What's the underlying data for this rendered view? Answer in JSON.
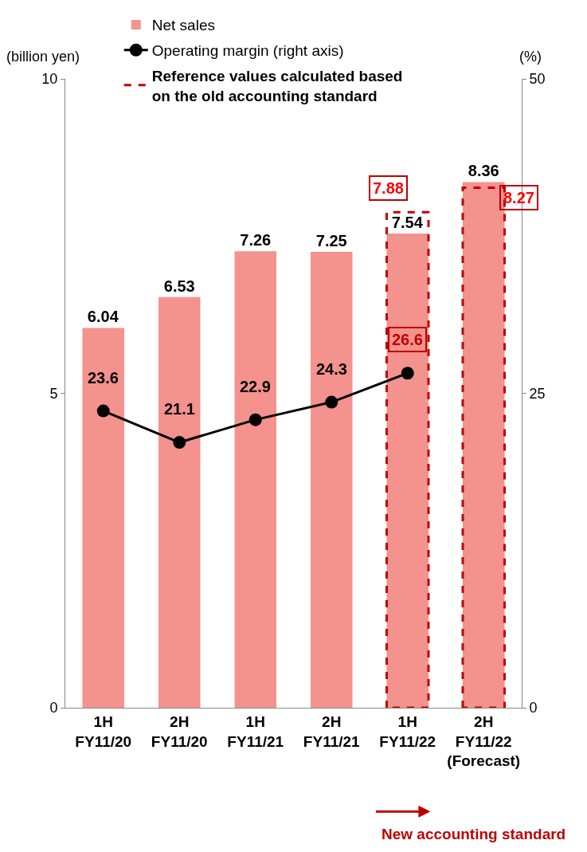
{
  "chart_data": {
    "type": "bar",
    "categories": [
      "1H\nFY11/20",
      "2H\nFY11/20",
      "1H\nFY11/21",
      "2H\nFY11/21",
      "1H\nFY11/22",
      "2H\nFY11/22\n(Forecast)"
    ],
    "series": [
      {
        "name": "Net sales",
        "color": "#f4928d",
        "values": [
          6.04,
          6.53,
          7.26,
          7.25,
          7.54,
          8.36
        ],
        "value_labels": [
          "6.04",
          "6.53",
          "7.26",
          "7.25",
          "7.54",
          "8.36"
        ]
      },
      {
        "name": "Operating margin (right axis)",
        "type": "line",
        "axis": "y2",
        "color": "#000000",
        "marker": "circle",
        "values": [
          23.6,
          21.1,
          22.9,
          24.3,
          26.6,
          null
        ],
        "value_labels": [
          "23.6",
          "21.1",
          "22.9",
          "24.3",
          "26.6",
          null
        ]
      },
      {
        "name": "Reference values calculated based on the old accounting standard",
        "line_style": "dashed",
        "color": "#c00000",
        "values": [
          null,
          null,
          null,
          null,
          7.88,
          8.27
        ],
        "value_labels": [
          null,
          null,
          null,
          null,
          "7.88",
          "8.27"
        ]
      }
    ],
    "ylabel": "(billion yen)",
    "y2label": "(%)",
    "ylim": [
      0,
      10
    ],
    "yticks": [
      0,
      5,
      10
    ],
    "y2lim": [
      0,
      50
    ],
    "y2ticks": [
      0,
      25,
      50
    ],
    "legend": "top left",
    "annotations": [
      "New accounting standard"
    ]
  }
}
